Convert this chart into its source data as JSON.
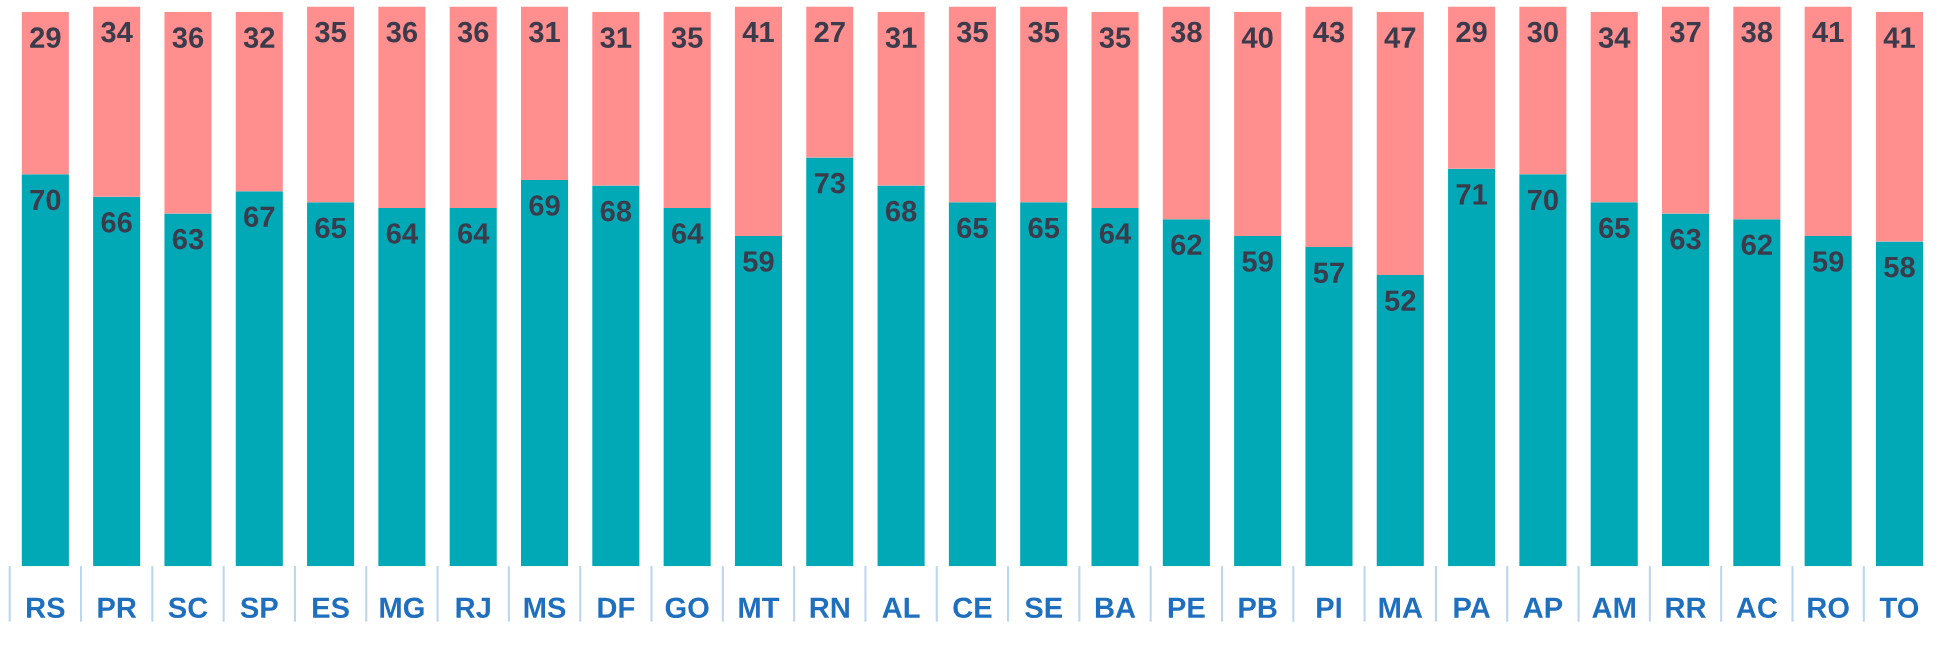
{
  "chart_data": {
    "type": "bar",
    "stacked": true,
    "data_labels": true,
    "grid": false,
    "legend": false,
    "tick_labels": "x",
    "ylim": [
      0,
      100
    ],
    "categories": [
      "RS",
      "PR",
      "SC",
      "SP",
      "ES",
      "MG",
      "RJ",
      "MS",
      "DF",
      "GO",
      "MT",
      "RN",
      "AL",
      "CE",
      "SE",
      "BA",
      "PE",
      "PB",
      "PI",
      "MA",
      "PA",
      "AP",
      "AM",
      "RR",
      "AC",
      "RO",
      "TO"
    ],
    "series": [
      {
        "color": "#00a9b5",
        "values": [
          70,
          66,
          63,
          67,
          65,
          64,
          64,
          69,
          68,
          64,
          59,
          73,
          68,
          65,
          65,
          64,
          62,
          59,
          57,
          52,
          71,
          70,
          65,
          63,
          62,
          59,
          58
        ]
      },
      {
        "color": "#ff8f8f",
        "values": [
          29,
          34,
          36,
          32,
          35,
          36,
          36,
          31,
          31,
          35,
          41,
          27,
          31,
          35,
          35,
          35,
          38,
          40,
          43,
          47,
          29,
          30,
          34,
          37,
          38,
          41,
          41
        ]
      }
    ]
  }
}
